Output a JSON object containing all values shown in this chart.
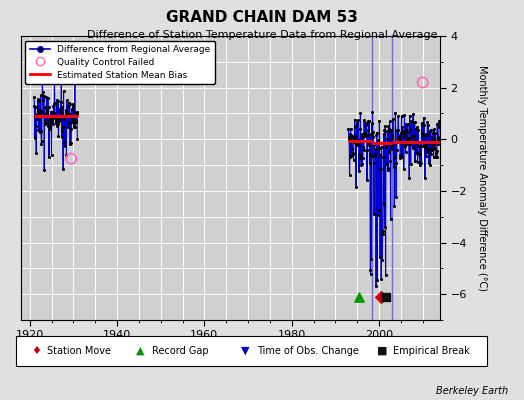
{
  "title": "GRAND CHAIN DAM 53",
  "subtitle": "Difference of Station Temperature Data from Regional Average",
  "ylabel": "Monthly Temperature Anomaly Difference (°C)",
  "xlim": [
    1918,
    2014
  ],
  "ylim": [
    -7,
    4
  ],
  "yticks": [
    -6,
    -4,
    -2,
    0,
    2,
    4
  ],
  "xticks": [
    1920,
    1940,
    1960,
    1980,
    2000
  ],
  "background_color": "#e0e0e0",
  "plot_bg_color": "#d0d0d0",
  "grid_color": "#ffffff",
  "line_color": "#0000cc",
  "bias_color": "#ff0000",
  "qc_color": "#ff69b4",
  "marker_color": "#000000",
  "s1_seed": 10,
  "s1_x_start": 1921.0,
  "s1_x_end": 1931.0,
  "s1_mean": 0.9,
  "s1_std": 0.55,
  "s2_seed": 20,
  "s2_x_start": 1993.0,
  "s2_x_end": 2014.0,
  "s2_mean": -0.1,
  "s2_std": 0.55,
  "vline1_x": 1998.5,
  "vline2_x": 2003.0,
  "bias1_x1": 1921.0,
  "bias1_x2": 1931.0,
  "bias1_y": 0.9,
  "bias2_x1": 1993.0,
  "bias2_x2": 1998.5,
  "bias2_y": -0.05,
  "bias3_x1": 1998.5,
  "bias3_x2": 2003.0,
  "bias3_y": -0.15,
  "bias4_x1": 2003.0,
  "bias4_x2": 2014.0,
  "bias4_y": -0.1,
  "qc1_x": 1929.5,
  "qc1_y": -0.75,
  "qc2_x": 2010.0,
  "qc2_y": 2.2,
  "marker_record_gap_x": 1995.5,
  "marker_station_move_x": 2000.5,
  "marker_empirical_x": 2001.5,
  "marker_y": -6.1
}
